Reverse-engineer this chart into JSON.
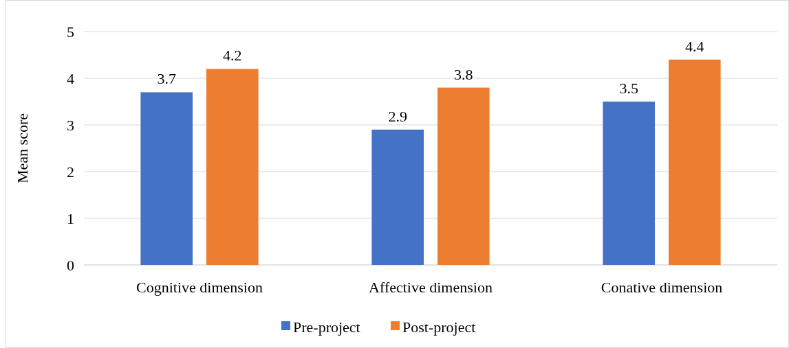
{
  "chart_data": {
    "type": "bar",
    "ylabel": "Mean score",
    "categories": [
      "Cognitive dimension",
      "Affective dimension",
      "Conative dimension"
    ],
    "series": [
      {
        "name": "Pre-project",
        "color": "#4472c4",
        "values": [
          3.7,
          2.9,
          3.5
        ]
      },
      {
        "name": "Post-project",
        "color": "#ed7d31",
        "values": [
          4.2,
          3.8,
          4.4
        ]
      }
    ],
    "ylim": [
      0,
      5
    ],
    "yticks": [
      0,
      1,
      2,
      3,
      4,
      5
    ],
    "grid": "y",
    "legend": "bottom",
    "data_labels": true
  }
}
